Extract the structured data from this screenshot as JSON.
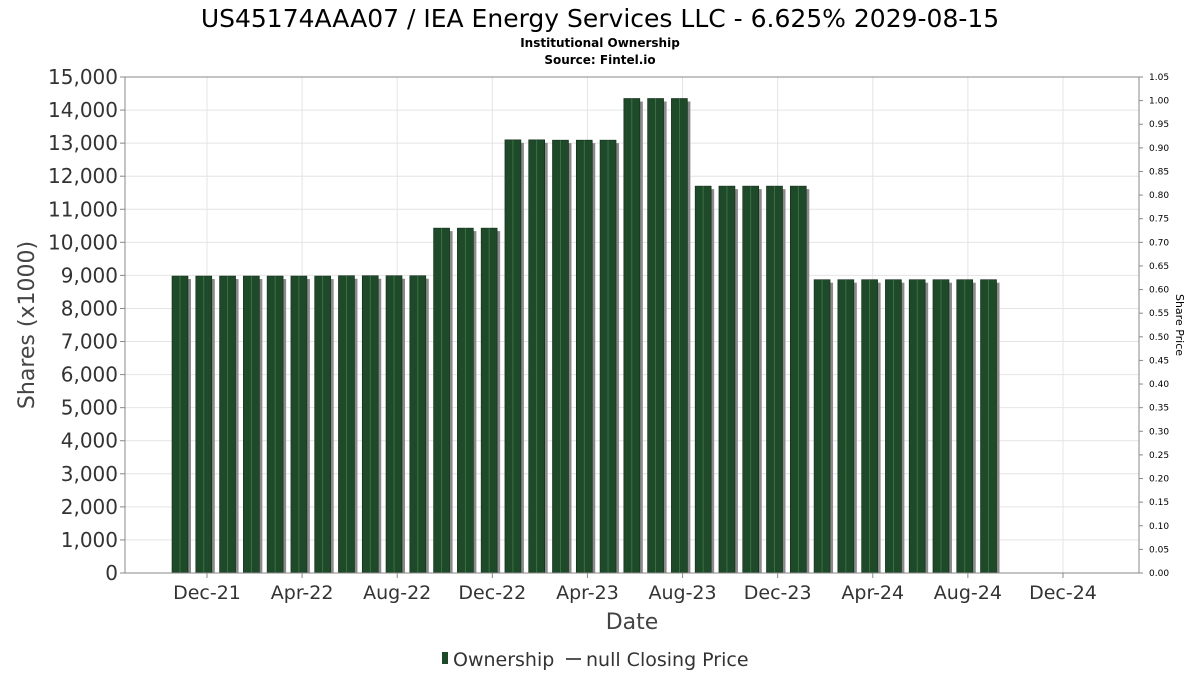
{
  "chart_data": {
    "type": "bar",
    "title": "US45174AAA07 / IEA Energy Services LLC - 6.625% 2029-08-15",
    "subtitle_lines": [
      "Institutional Ownership",
      "Source: Fintel.io"
    ],
    "xlabel": "Date",
    "ylabel": "Shares (x1000)",
    "y2label": "Share Price",
    "ylim": [
      0,
      15000
    ],
    "y2lim": [
      0,
      1.05
    ],
    "y_ticks": [
      "0",
      "1,000",
      "2,000",
      "3,000",
      "4,000",
      "5,000",
      "6,000",
      "7,000",
      "8,000",
      "9,000",
      "10,000",
      "11,000",
      "12,000",
      "13,000",
      "14,000",
      "15,000"
    ],
    "y2_ticks": [
      "0.00",
      "0.05",
      "0.10",
      "0.15",
      "0.20",
      "0.25",
      "0.30",
      "0.35",
      "0.40",
      "0.45",
      "0.50",
      "0.55",
      "0.60",
      "0.65",
      "0.70",
      "0.75",
      "0.80",
      "0.85",
      "0.90",
      "0.95",
      "1.00",
      "1.05"
    ],
    "x_ticks": [
      "Dec-21",
      "Apr-22",
      "Aug-22",
      "Dec-22",
      "Apr-23",
      "Aug-23",
      "Dec-23",
      "Apr-24",
      "Aug-24",
      "Dec-24"
    ],
    "grid": true,
    "legend_position": "bottom",
    "series": [
      {
        "name": "Ownership",
        "color": "#1f4a2a",
        "values": [
          8980,
          8980,
          8980,
          8980,
          8980,
          8980,
          8980,
          8990,
          8990,
          8990,
          8990,
          10430,
          10430,
          10430,
          13100,
          13100,
          13090,
          13090,
          13090,
          14350,
          14350,
          14350,
          11700,
          11700,
          11700,
          11700,
          11700,
          8870,
          8870,
          8870,
          8870,
          8870,
          8870,
          8870,
          8870
        ]
      }
    ],
    "legend": [
      {
        "label": "Ownership",
        "swatch": "bar",
        "color": "#1f4a2a"
      },
      {
        "label": "null Closing Price",
        "swatch": "line",
        "color": "#555555"
      }
    ]
  }
}
